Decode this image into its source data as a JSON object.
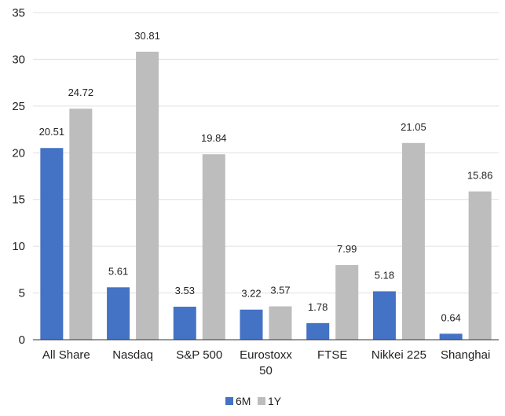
{
  "chart_data": {
    "type": "bar",
    "categories": [
      [
        "All Share"
      ],
      [
        "Nasdaq"
      ],
      [
        "S&P 500"
      ],
      [
        "Eurostoxx",
        "50"
      ],
      [
        "FTSE"
      ],
      [
        "Nikkei 225"
      ],
      [
        "Shanghai"
      ]
    ],
    "series": [
      {
        "name": "6M",
        "color": "#4472C4",
        "values": [
          20.51,
          5.61,
          3.53,
          3.22,
          1.78,
          5.18,
          0.64
        ]
      },
      {
        "name": "1Y",
        "color": "#BDBDBD",
        "values": [
          24.72,
          30.81,
          19.84,
          3.57,
          7.99,
          21.05,
          15.86
        ]
      }
    ],
    "data_labels": [
      [
        "20.51",
        "5.61",
        "3.53",
        "3.22",
        "1.78",
        "5.18",
        "0.64"
      ],
      [
        "24.72",
        "30.81",
        "19.84",
        "3.57",
        "7.99",
        "21.05",
        "15.86"
      ]
    ],
    "y_ticks": [
      "0",
      "5",
      "10",
      "15",
      "20",
      "25",
      "30",
      "35"
    ],
    "ylim": [
      0,
      35
    ],
    "grid": true,
    "legend_position": "bottom-center"
  }
}
